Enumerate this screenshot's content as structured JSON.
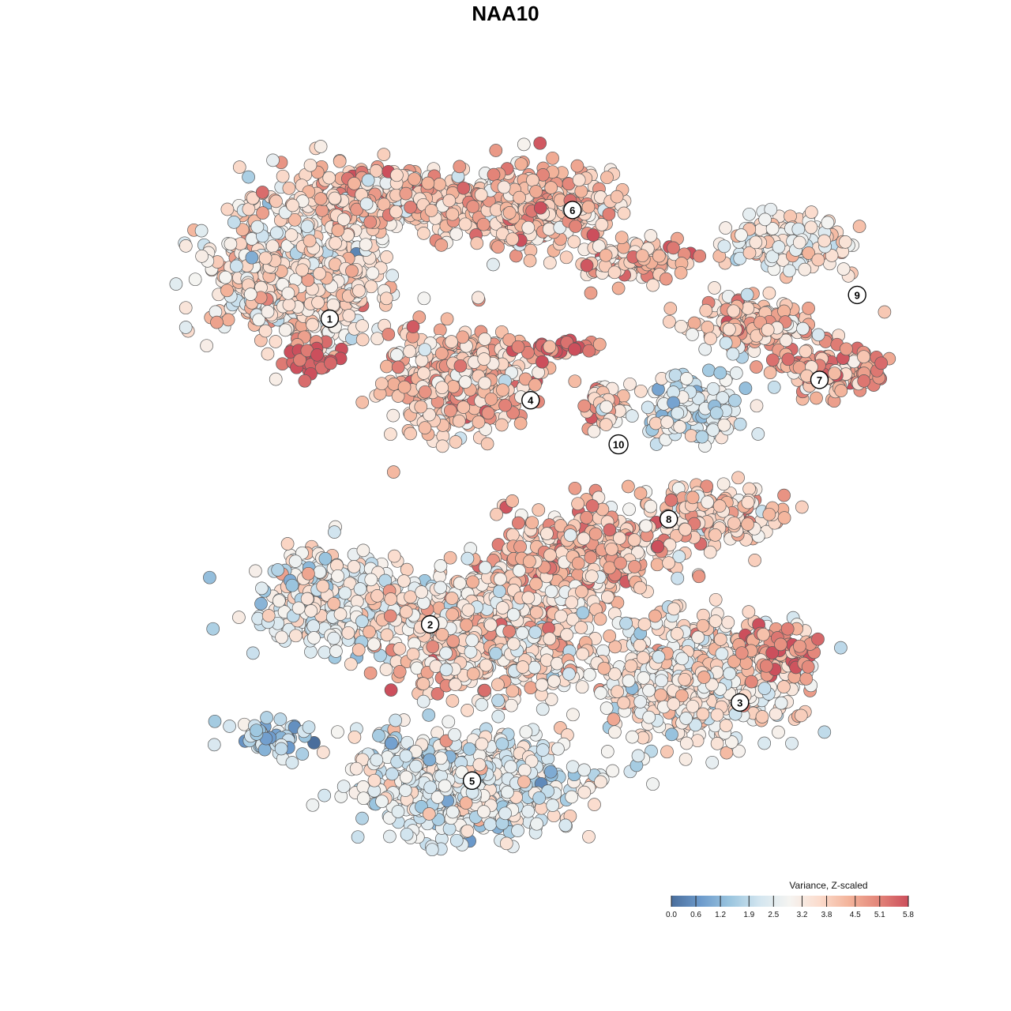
{
  "chart_data": {
    "type": "scatter",
    "title": "NAA10",
    "xlabel": "",
    "ylabel": "",
    "grid": false,
    "legend_position": "bottom-right",
    "colorbar": {
      "title": "Variance, Z-scaled",
      "min": 0.0,
      "max": 5.8,
      "ticks": [
        "0.0",
        "0.6",
        "1.2",
        "1.9",
        "2.5",
        "3.2",
        "3.8",
        "4.5",
        "5.1",
        "5.8"
      ],
      "colors": [
        "#4a6e9c",
        "#6d9bcc",
        "#9cc6df",
        "#d4e6f0",
        "#f5f4f1",
        "#fbdccd",
        "#f3b39a",
        "#e38579",
        "#cc4f5c"
      ]
    },
    "clusters": [
      {
        "label": "1",
        "x": -0.42,
        "y": 0.55,
        "mean": 3.7
      },
      {
        "label": "2",
        "x": -0.18,
        "y": -0.35,
        "mean": 2.6
      },
      {
        "label": "3",
        "x": 0.56,
        "y": -0.58,
        "mean": 3.4
      },
      {
        "label": "4",
        "x": 0.06,
        "y": 0.31,
        "mean": 4.2
      },
      {
        "label": "5",
        "x": -0.08,
        "y": -0.81,
        "mean": 2.6
      },
      {
        "label": "6",
        "x": 0.16,
        "y": 0.87,
        "mean": 4.0
      },
      {
        "label": "7",
        "x": 0.75,
        "y": 0.37,
        "mean": 4.2
      },
      {
        "label": "8",
        "x": 0.39,
        "y": -0.04,
        "mean": 3.7
      },
      {
        "label": "9",
        "x": 0.84,
        "y": 0.62,
        "mean": 3.0
      },
      {
        "label": "10",
        "x": 0.27,
        "y": 0.18,
        "mean": 3.9
      }
    ]
  }
}
